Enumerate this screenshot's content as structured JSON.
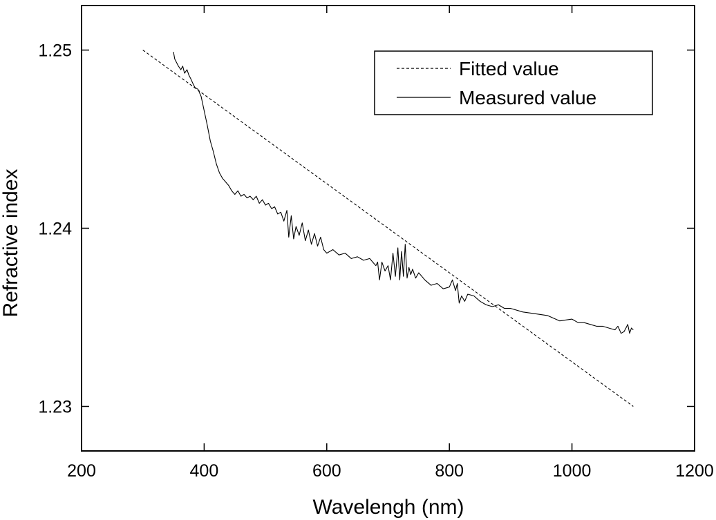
{
  "chart_data": {
    "type": "line",
    "title": "",
    "xlabel": "Wavelengh (nm)",
    "ylabel": "Refractive index",
    "xlim": [
      200,
      1200
    ],
    "ylim": [
      1.2275,
      1.2525
    ],
    "xticks": [
      200,
      400,
      600,
      800,
      1000,
      1200
    ],
    "xtick_labels": [
      "200",
      "400",
      "600",
      "800",
      "1000",
      "1200"
    ],
    "yticks": [
      1.23,
      1.24,
      1.25
    ],
    "ytick_labels": [
      "1.23",
      "1.24",
      "1.25"
    ],
    "grid": false,
    "legend_position": "top-right",
    "series": [
      {
        "name": "Fitted value",
        "style": "dashed",
        "x": [
          300,
          1100
        ],
        "y": [
          1.25,
          1.23
        ]
      },
      {
        "name": "Measured value",
        "style": "solid",
        "x": [
          350,
          352,
          355,
          358,
          362,
          365,
          368,
          372,
          375,
          378,
          382,
          385,
          390,
          395,
          400,
          405,
          410,
          415,
          420,
          425,
          430,
          435,
          440,
          445,
          450,
          455,
          460,
          465,
          470,
          475,
          480,
          485,
          490,
          495,
          500,
          505,
          510,
          515,
          520,
          525,
          530,
          535,
          538,
          542,
          546,
          550,
          555,
          560,
          565,
          570,
          575,
          580,
          585,
          590,
          595,
          600,
          610,
          620,
          630,
          640,
          650,
          660,
          670,
          680,
          683,
          686,
          690,
          695,
          700,
          704,
          708,
          712,
          716,
          719,
          722,
          725,
          728,
          731,
          734,
          737,
          740,
          745,
          750,
          760,
          770,
          780,
          790,
          800,
          805,
          810,
          813,
          816,
          820,
          825,
          830,
          840,
          850,
          860,
          870,
          880,
          890,
          900,
          920,
          940,
          960,
          980,
          1000,
          1010,
          1020,
          1030,
          1040,
          1050,
          1060,
          1070,
          1075,
          1080,
          1085,
          1088,
          1091,
          1094,
          1097,
          1100
        ],
        "y": [
          1.2499,
          1.2495,
          1.2493,
          1.2491,
          1.2489,
          1.2491,
          1.2487,
          1.2489,
          1.2486,
          1.2484,
          1.2481,
          1.2479,
          1.2478,
          1.2474,
          1.2466,
          1.2458,
          1.2449,
          1.2443,
          1.2436,
          1.2431,
          1.2428,
          1.2426,
          1.2424,
          1.2421,
          1.2419,
          1.2421,
          1.2418,
          1.2419,
          1.2417,
          1.2418,
          1.2416,
          1.2418,
          1.2414,
          1.2416,
          1.2413,
          1.2414,
          1.2411,
          1.2412,
          1.2408,
          1.2409,
          1.2404,
          1.241,
          1.2395,
          1.2407,
          1.2394,
          1.2401,
          1.2396,
          1.2403,
          1.2393,
          1.2399,
          1.2391,
          1.2397,
          1.239,
          1.2395,
          1.2388,
          1.2386,
          1.2388,
          1.2385,
          1.2386,
          1.2383,
          1.2384,
          1.2382,
          1.2383,
          1.2379,
          1.2381,
          1.2371,
          1.2381,
          1.2376,
          1.2379,
          1.2371,
          1.2386,
          1.2373,
          1.2389,
          1.2371,
          1.2387,
          1.2373,
          1.2391,
          1.2372,
          1.2378,
          1.2374,
          1.2377,
          1.2372,
          1.2375,
          1.2371,
          1.2368,
          1.2369,
          1.2366,
          1.2367,
          1.2371,
          1.2365,
          1.2369,
          1.2358,
          1.2362,
          1.2359,
          1.2363,
          1.2362,
          1.2359,
          1.2357,
          1.2356,
          1.2357,
          1.2355,
          1.2355,
          1.2353,
          1.2352,
          1.2351,
          1.2348,
          1.2349,
          1.2347,
          1.2347,
          1.2346,
          1.2345,
          1.2345,
          1.2344,
          1.2343,
          1.2345,
          1.2341,
          1.2342,
          1.2344,
          1.2346,
          1.2341,
          1.2344,
          1.2343
        ]
      }
    ]
  }
}
